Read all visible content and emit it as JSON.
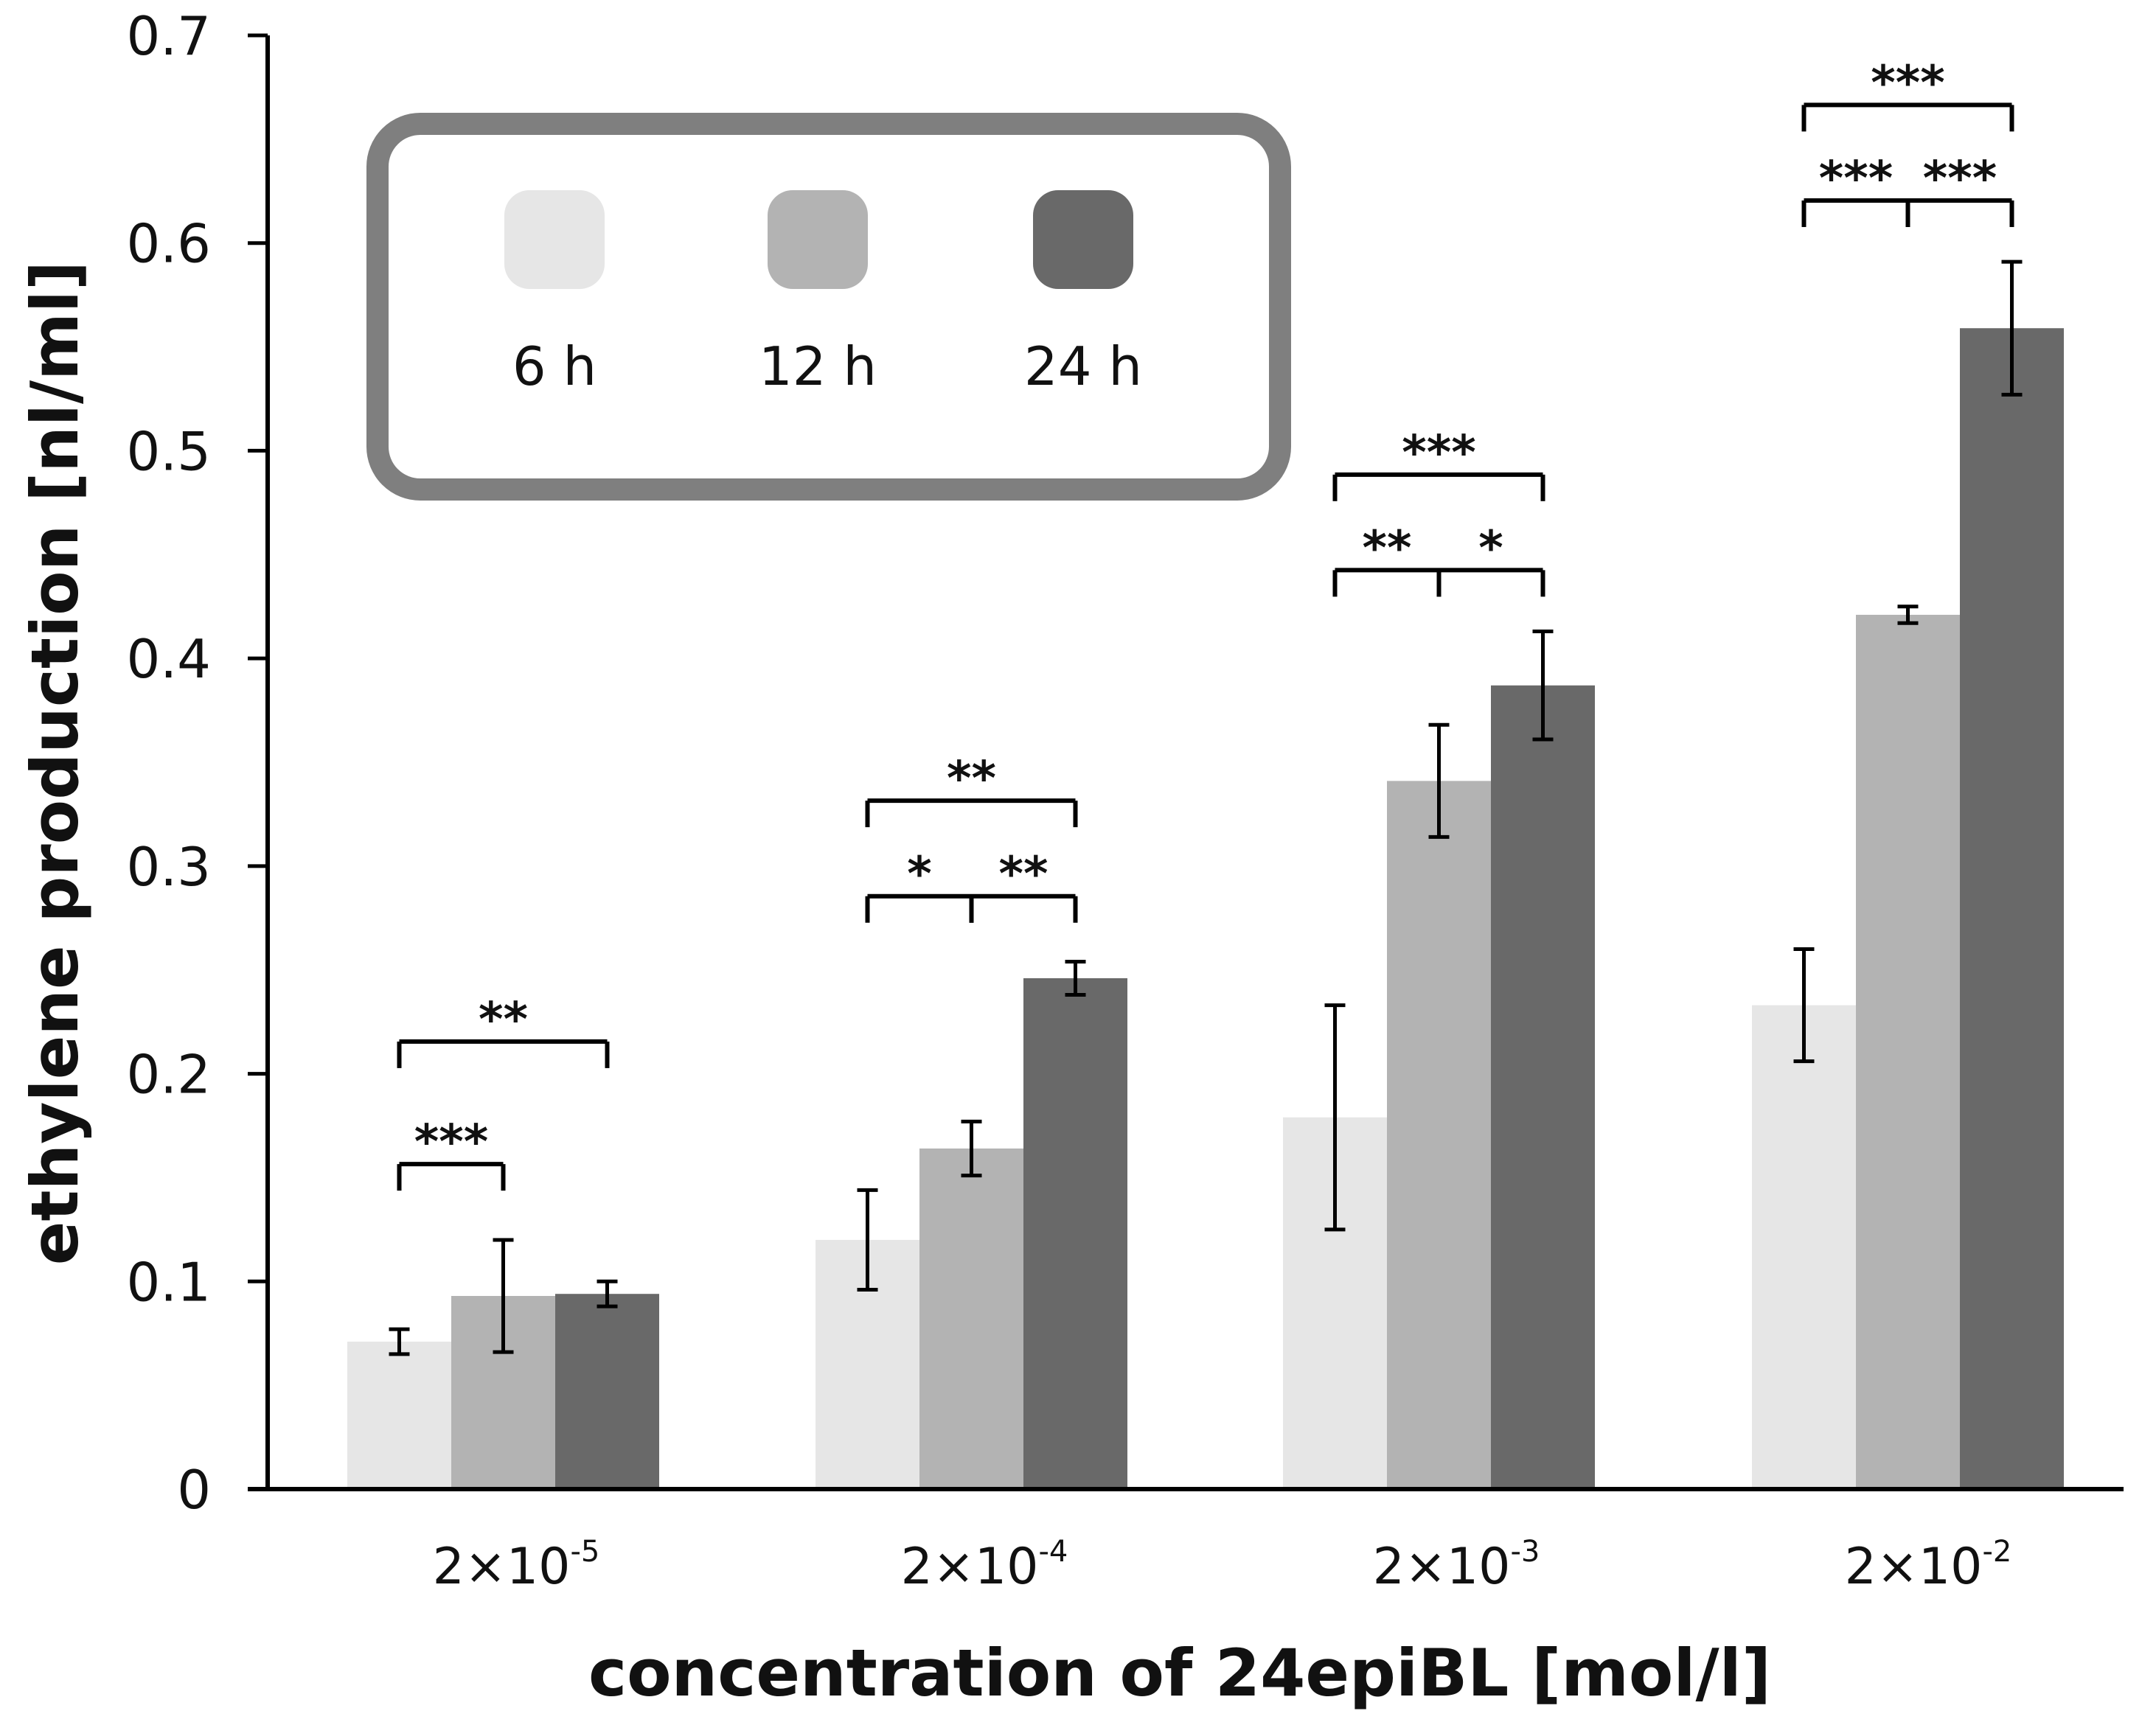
{
  "chart_data": {
    "type": "bar",
    "xlabel": "concentration of 24epiBL [mol/l]",
    "ylabel": "ethylene production [nl/ml]",
    "ylim": [
      0,
      0.7
    ],
    "yticks": [
      "0",
      "0.1",
      "0.2",
      "0.3",
      "0.4",
      "0.5",
      "0.6",
      "0.7"
    ],
    "categories": [
      {
        "base": "2×10",
        "exp": "-5"
      },
      {
        "base": "2×10",
        "exp": "-4"
      },
      {
        "base": "2×10",
        "exp": "-3"
      },
      {
        "base": "2×10",
        "exp": "-2"
      }
    ],
    "series": [
      {
        "name": "6 h",
        "color": "#e6e6e6",
        "values": [
          0.071,
          0.12,
          0.179,
          0.233
        ],
        "errors": [
          0.006,
          0.024,
          0.054,
          0.027
        ]
      },
      {
        "name": "12 h",
        "color": "#b3b3b3",
        "values": [
          0.093,
          0.164,
          0.341,
          0.421
        ],
        "errors": [
          0.027,
          0.013,
          0.027,
          0.004
        ]
      },
      {
        "name": "24 h",
        "color": "#696969",
        "values": [
          0.094,
          0.246,
          0.387,
          0.559
        ],
        "errors": [
          0.006,
          0.008,
          0.026,
          0.032
        ]
      }
    ],
    "significance": [
      {
        "group": 0,
        "level": 0.1565,
        "from": 0,
        "to": 1,
        "label": "***"
      },
      {
        "group": 0,
        "level": 0.2155,
        "from": 0,
        "to": 2,
        "label": "**"
      },
      {
        "group": 1,
        "level": 0.2855,
        "from": 0,
        "to": 1,
        "label": "*"
      },
      {
        "group": 1,
        "level": 0.2855,
        "from": 1,
        "to": 2,
        "label": "**"
      },
      {
        "group": 1,
        "level": 0.3315,
        "from": 0,
        "to": 2,
        "label": "**"
      },
      {
        "group": 2,
        "level": 0.4425,
        "from": 0,
        "to": 1,
        "label": "**"
      },
      {
        "group": 2,
        "level": 0.4425,
        "from": 1,
        "to": 2,
        "label": "*"
      },
      {
        "group": 2,
        "level": 0.4885,
        "from": 0,
        "to": 2,
        "label": "***"
      },
      {
        "group": 3,
        "level": 0.6205,
        "from": 0,
        "to": 1,
        "label": "***"
      },
      {
        "group": 3,
        "level": 0.6205,
        "from": 1,
        "to": 2,
        "label": "***"
      },
      {
        "group": 3,
        "level": 0.6665,
        "from": 0,
        "to": 2,
        "label": "***"
      }
    ],
    "legend": {
      "placement": "top-left"
    },
    "grid": false
  }
}
